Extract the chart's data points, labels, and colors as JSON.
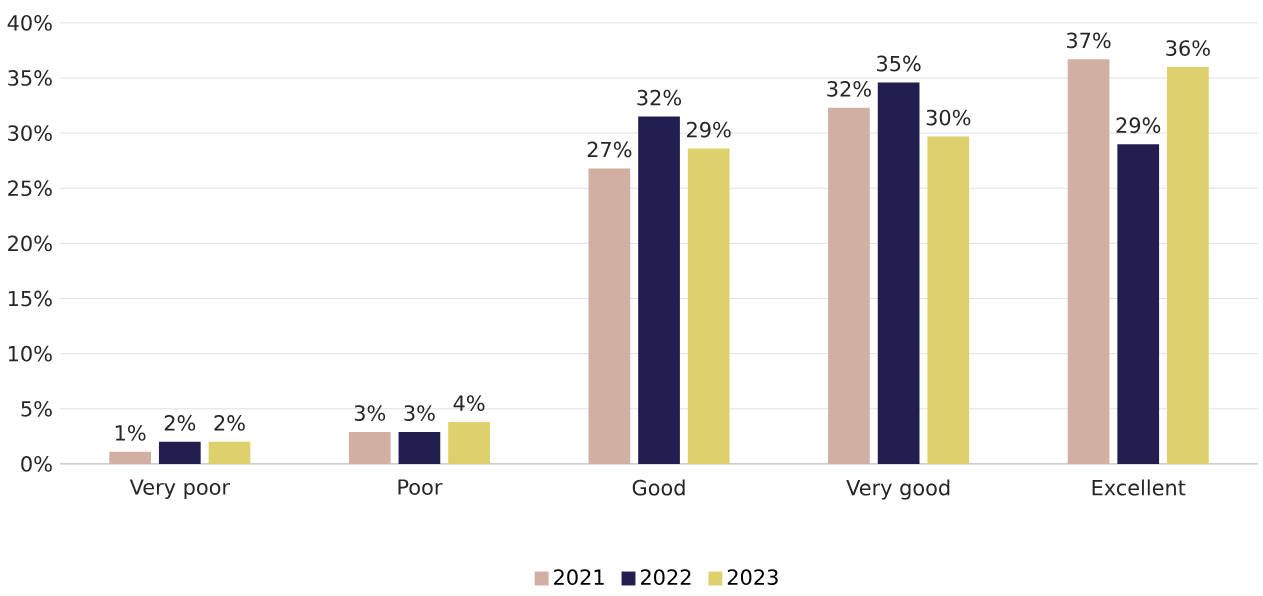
{
  "chart_data": {
    "type": "bar",
    "categories": [
      "Very poor",
      "Poor",
      "Good",
      "Very good",
      "Excellent"
    ],
    "series": [
      {
        "name": "2021",
        "color": "#d2afa3",
        "values": [
          1.1,
          2.9,
          26.8,
          32.3,
          36.7
        ],
        "value_labels": [
          "1%",
          "3%",
          "27%",
          "32%",
          "37%"
        ]
      },
      {
        "name": "2022",
        "color": "#221e4f",
        "values": [
          2.0,
          2.9,
          31.5,
          34.6,
          29.0
        ],
        "value_labels": [
          "2%",
          "3%",
          "32%",
          "35%",
          "29%"
        ]
      },
      {
        "name": "2023",
        "color": "#ded06c",
        "values": [
          2.0,
          3.8,
          28.6,
          29.7,
          36.0
        ],
        "value_labels": [
          "2%",
          "4%",
          "29%",
          "30%",
          "36%"
        ]
      }
    ],
    "ylim": [
      0,
      40
    ],
    "yticks": [
      {
        "value": 0,
        "label": "0%"
      },
      {
        "value": 5,
        "label": "5%"
      },
      {
        "value": 10,
        "label": "10%"
      },
      {
        "value": 15,
        "label": "15%"
      },
      {
        "value": 20,
        "label": "20%"
      },
      {
        "value": 25,
        "label": "25%"
      },
      {
        "value": 30,
        "label": "30%"
      },
      {
        "value": 35,
        "label": "35%"
      },
      {
        "value": 40,
        "label": "40%"
      }
    ],
    "grid": "y",
    "legend": "bottom"
  }
}
